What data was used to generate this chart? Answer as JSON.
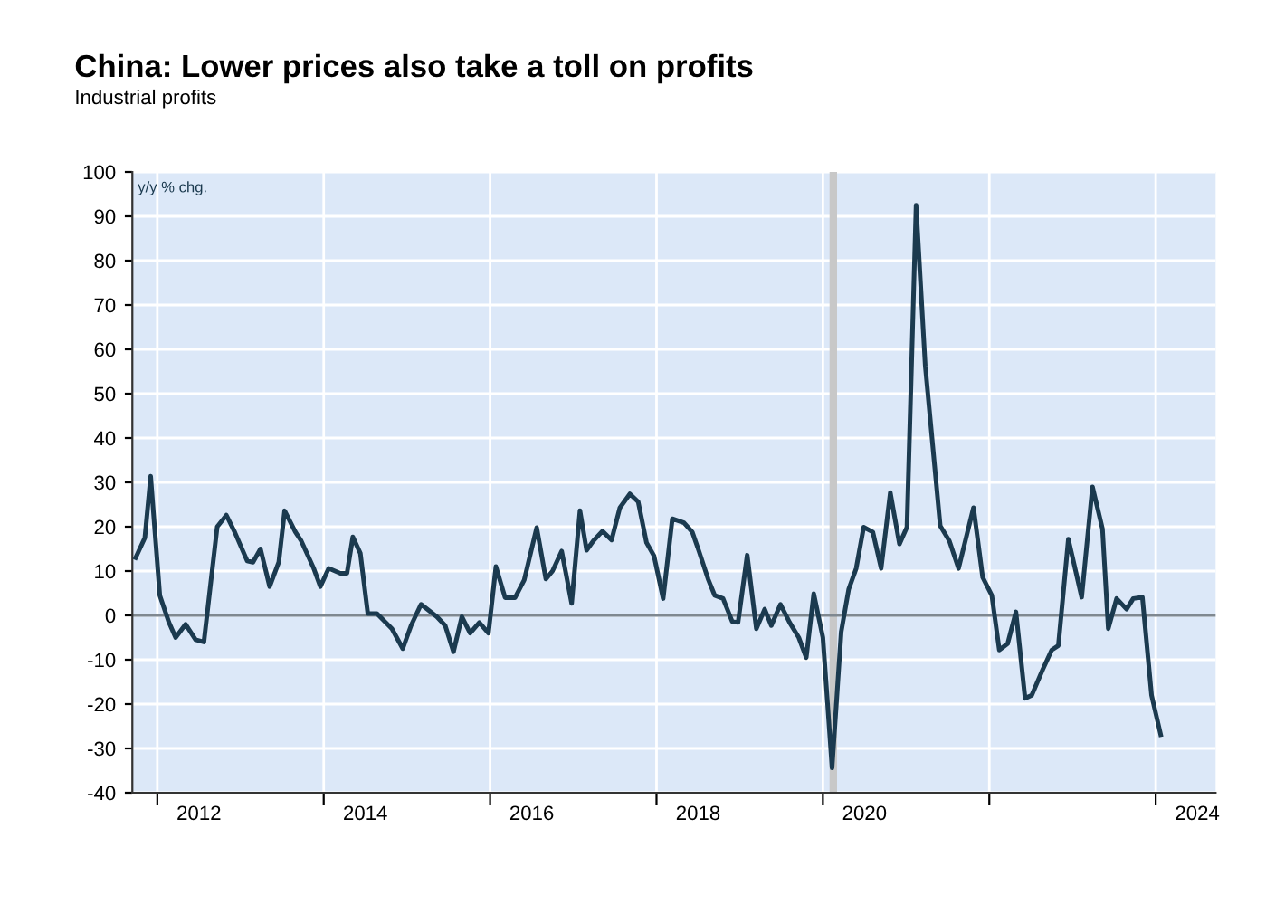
{
  "chart_data": {
    "type": "line",
    "title": "China: Lower prices also take a toll on profits",
    "subtitle": "Industrial profits",
    "ylabel": "y/y % chg.",
    "x": [
      2011.74,
      2011.85,
      2011.92,
      2012.03,
      2012.14,
      2012.22,
      2012.34,
      2012.46,
      2012.56,
      2012.72,
      2012.83,
      2012.93,
      2013.08,
      2013.15,
      2013.24,
      2013.35,
      2013.46,
      2013.53,
      2013.66,
      2013.73,
      2013.88,
      2013.96,
      2014.06,
      2014.2,
      2014.28,
      2014.35,
      2014.44,
      2014.53,
      2014.64,
      2014.82,
      2014.95,
      2015.05,
      2015.17,
      2015.36,
      2015.46,
      2015.56,
      2015.66,
      2015.76,
      2015.87,
      2015.98,
      2016.07,
      2016.18,
      2016.3,
      2016.41,
      2016.56,
      2016.67,
      2016.75,
      2016.86,
      2016.98,
      2017.08,
      2017.16,
      2017.24,
      2017.35,
      2017.46,
      2017.56,
      2017.68,
      2017.78,
      2017.88,
      2017.97,
      2018.08,
      2018.19,
      2018.33,
      2018.43,
      2018.51,
      2018.62,
      2018.7,
      2018.8,
      2018.91,
      2018.98,
      2019.09,
      2019.2,
      2019.3,
      2019.38,
      2019.49,
      2019.6,
      2019.71,
      2019.8,
      2019.89,
      2020.0,
      2020.11,
      2020.22,
      2020.31,
      2020.4,
      2020.49,
      2020.6,
      2020.7,
      2020.81,
      2020.92,
      2021.01,
      2021.12,
      2021.23,
      2021.41,
      2021.52,
      2021.63,
      2021.81,
      2021.92,
      2022.03,
      2022.12,
      2022.22,
      2022.32,
      2022.43,
      2022.51,
      2022.64,
      2022.75,
      2022.83,
      2022.95,
      2023.11,
      2023.24,
      2023.36,
      2023.43,
      2023.53,
      2023.65,
      2023.73,
      2023.84,
      2023.95,
      2024.06
    ],
    "series": [
      {
        "color": "#1b3a4f",
        "values": [
          13,
          17.5,
          31.4,
          4.5,
          -1.6,
          -5,
          -2,
          -5.5,
          -6,
          20,
          22.6,
          18.8,
          12.3,
          12,
          15,
          6.5,
          12,
          23.6,
          18.8,
          16.8,
          10.6,
          6.5,
          10.6,
          9.5,
          9.5,
          17.7,
          14,
          0.4,
          0.4,
          -3,
          -7.5,
          -2.3,
          2.5,
          -0.3,
          -2.3,
          -8.2,
          -0.3,
          -4,
          -1.6,
          -4,
          11,
          4,
          4,
          8,
          19.8,
          8.2,
          10,
          14.5,
          2.7,
          23.6,
          14.7,
          16.8,
          19,
          17,
          24.3,
          27.4,
          25.6,
          16.4,
          13.4,
          3.8,
          21.8,
          20.9,
          18.8,
          14.5,
          8.2,
          4.5,
          3.8,
          -1.4,
          -1.6,
          13.6,
          -3,
          1.4,
          -2.3,
          2.5,
          -1.6,
          -5,
          -9.5,
          4.9,
          -5,
          -34.4,
          -3.7,
          5.9,
          10.6,
          19.9,
          18.8,
          10.6,
          27.7,
          16.1,
          19.9,
          92.5,
          56.3,
          20.2,
          16.8,
          10.6,
          24.3,
          8.6,
          4.5,
          -7.8,
          -6.4,
          0.8,
          -18.7,
          -18,
          -12.3,
          -7.8,
          -6.8,
          17.2,
          4.1,
          29,
          19.5,
          -3,
          3.8,
          1.4,
          3.8,
          4.1,
          -18,
          -26.9
        ]
      }
    ],
    "xlim": [
      2011.7,
      2024.72
    ],
    "xticks": [
      {
        "value": 2012,
        "label": null
      },
      {
        "value": 2014,
        "label": null
      },
      {
        "value": 2016,
        "label": null
      },
      {
        "value": 2018,
        "label": null
      },
      {
        "value": 2020,
        "label": null
      },
      {
        "value": 2022,
        "label": null
      },
      {
        "value": 2024,
        "label": null
      },
      {
        "value": 2012.5,
        "label": "2012"
      },
      {
        "value": 2014.5,
        "label": "2014"
      },
      {
        "value": 2016.5,
        "label": "2016"
      },
      {
        "value": 2018.5,
        "label": "2018"
      },
      {
        "value": 2020.5,
        "label": "2020"
      },
      {
        "value": 2024.5,
        "label": "2024"
      }
    ],
    "ylim": [
      -40,
      100
    ],
    "yticks": [
      -40,
      -30,
      -20,
      -10,
      0,
      10,
      20,
      30,
      40,
      50,
      60,
      70,
      80,
      90,
      100
    ],
    "ref_lines": [
      {
        "axis": "y",
        "value": 0,
        "color": "#7f8890"
      }
    ],
    "bands": [
      {
        "axis": "x",
        "from": 2020.08,
        "to": 2020.17,
        "color": "#c8c8c8"
      }
    ],
    "grid": true,
    "marker": "none",
    "line_style": "solid",
    "legend": false
  }
}
